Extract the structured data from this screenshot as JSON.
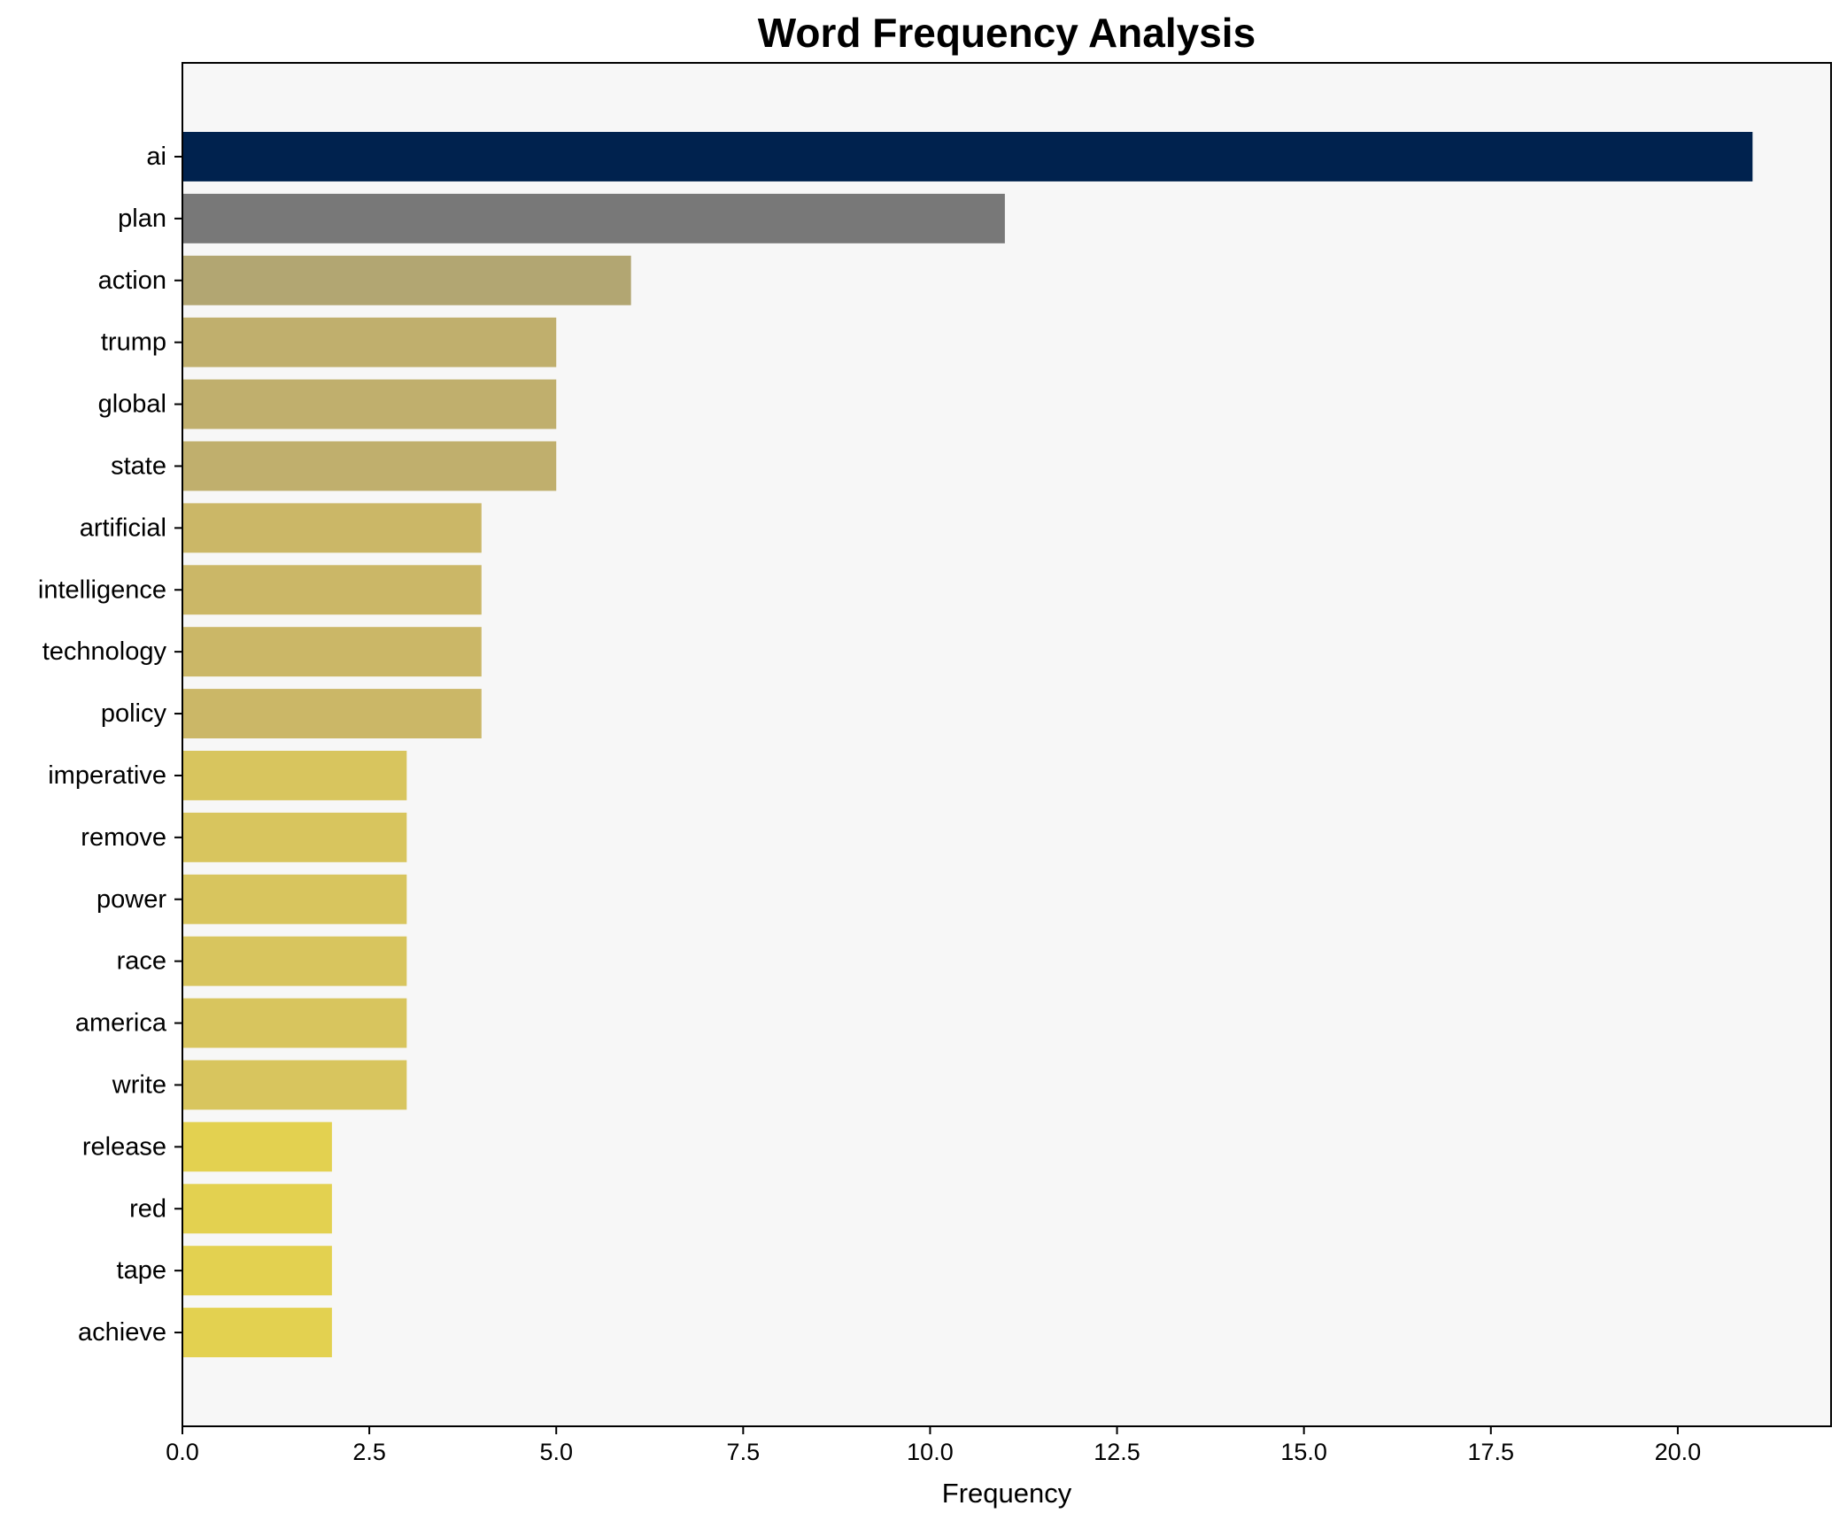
{
  "chart_data": {
    "type": "bar",
    "orientation": "horizontal",
    "title": "Word Frequency Analysis",
    "xlabel": "Frequency",
    "ylabel": "",
    "xlim": [
      0,
      22.05
    ],
    "x_ticks": [
      "0.0",
      "2.5",
      "5.0",
      "7.5",
      "10.0",
      "12.5",
      "15.0",
      "17.5",
      "20.0"
    ],
    "x_tick_values": [
      0,
      2.5,
      5,
      7.5,
      10,
      12.5,
      15,
      17.5,
      20
    ],
    "grid": false,
    "legend": "none",
    "plot_background": "#f7f7f7",
    "categories": [
      "ai",
      "plan",
      "action",
      "trump",
      "global",
      "state",
      "artificial",
      "intelligence",
      "technology",
      "policy",
      "imperative",
      "remove",
      "power",
      "race",
      "america",
      "write",
      "release",
      "red",
      "tape",
      "achieve"
    ],
    "values": [
      21,
      11,
      6,
      5,
      5,
      5,
      4,
      4,
      4,
      4,
      3,
      3,
      3,
      3,
      3,
      3,
      2,
      2,
      2,
      2
    ],
    "colors": [
      "#00224e",
      "#787878",
      "#b2a672",
      "#c0af6d",
      "#c0af6d",
      "#c0af6d",
      "#cbb767",
      "#cbb767",
      "#cbb767",
      "#cbb767",
      "#d8c55e",
      "#d8c55e",
      "#d8c55e",
      "#d8c55e",
      "#d8c55e",
      "#d8c55e",
      "#e3d150",
      "#e3d150",
      "#e3d150",
      "#e3d150"
    ]
  }
}
